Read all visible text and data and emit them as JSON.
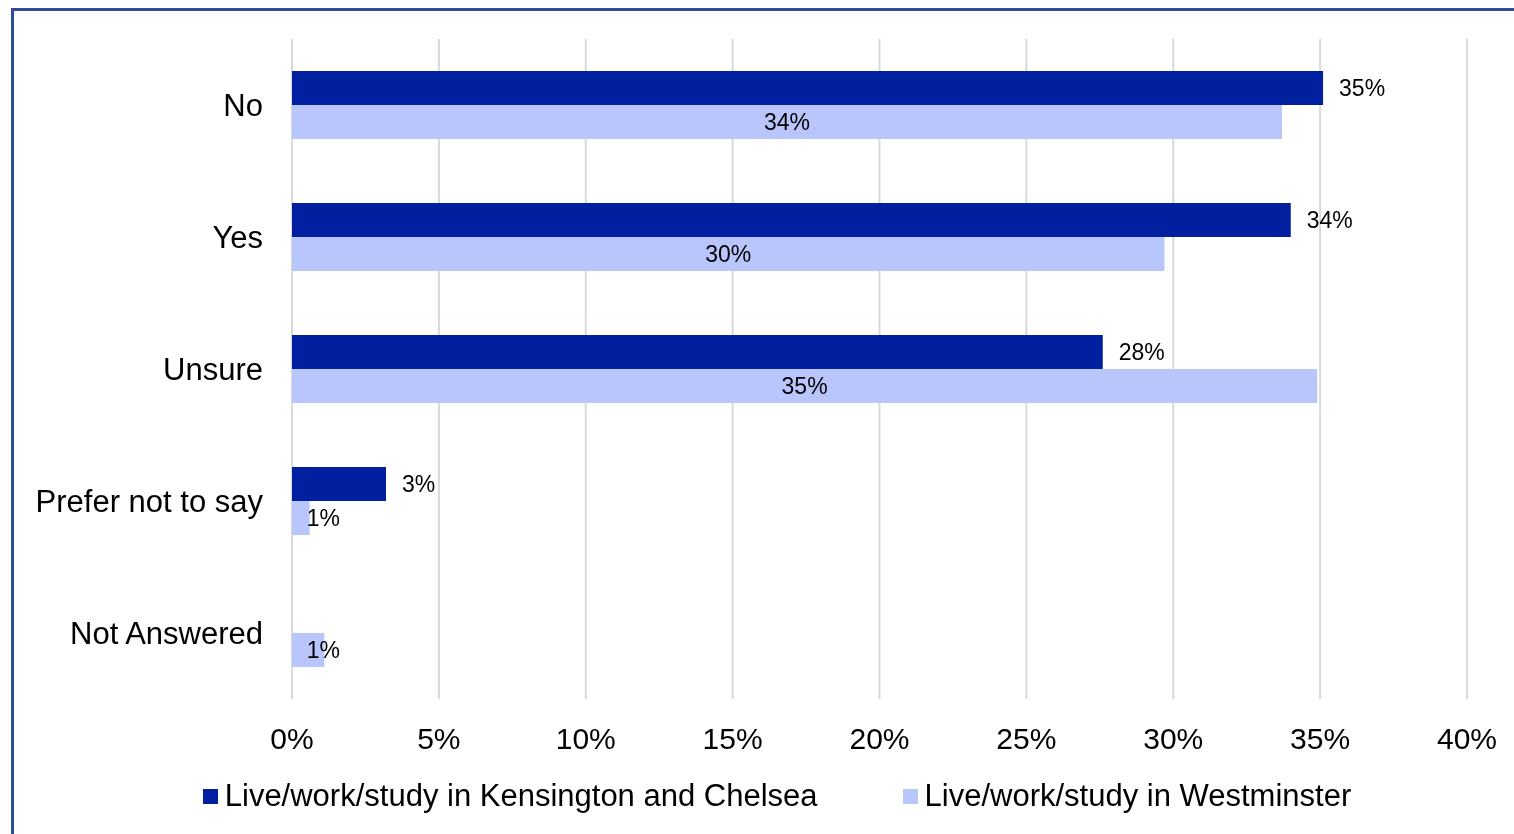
{
  "chart_data": {
    "type": "bar",
    "orientation": "horizontal",
    "categories": [
      "No",
      "Yes",
      "Unsure",
      "Prefer not to say",
      "Not Answered"
    ],
    "series": [
      {
        "name": "Live/work/study in Kensington and Chelsea",
        "color": "#0020a0",
        "values": [
          35.1,
          34.0,
          27.6,
          3.2,
          null
        ],
        "value_labels": [
          "35%",
          "34%",
          "28%",
          "3%",
          null
        ]
      },
      {
        "name": "Live/work/study in Westminster",
        "color": "#b8c6fb",
        "values": [
          33.7,
          29.7,
          34.9,
          0.6,
          1.1
        ],
        "value_labels": [
          "34%",
          "30%",
          "35%",
          "1%",
          "1%"
        ]
      }
    ],
    "xlim": [
      0,
      40
    ],
    "xticks": [
      {
        "value": 0,
        "label": "0%"
      },
      {
        "value": 5,
        "label": "5%"
      },
      {
        "value": 10,
        "label": "10%"
      },
      {
        "value": 15,
        "label": "15%"
      },
      {
        "value": 20,
        "label": "20%"
      },
      {
        "value": 25,
        "label": "25%"
      },
      {
        "value": 30,
        "label": "30%"
      },
      {
        "value": 35,
        "label": "35%"
      },
      {
        "value": 40,
        "label": "40%"
      }
    ],
    "grid": "x",
    "legend": "bottom"
  }
}
